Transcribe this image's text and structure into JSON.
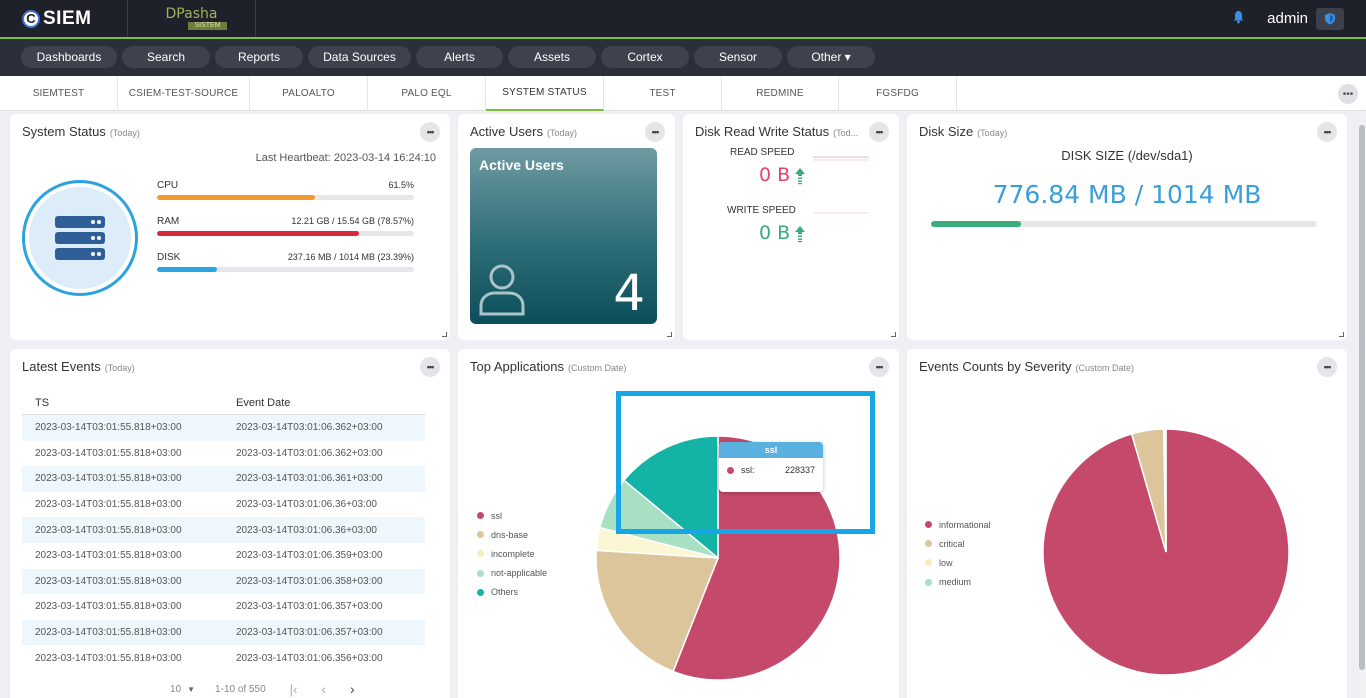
{
  "topbar": {
    "brand_letter": "C",
    "brand": "SIEM",
    "partner_name": "DPasha",
    "partner_sub": "SISTEM",
    "user": "admin"
  },
  "nav": [
    {
      "label": "Dashboards"
    },
    {
      "label": "Search"
    },
    {
      "label": "Reports"
    },
    {
      "label": "Data Sources"
    },
    {
      "label": "Alerts"
    },
    {
      "label": "Assets"
    },
    {
      "label": "Cortex"
    },
    {
      "label": "Sensor"
    },
    {
      "label": "Other ▾"
    }
  ],
  "tabs": [
    {
      "label": "SIEMTEST"
    },
    {
      "label": "CSIEM-TEST-SOURCE"
    },
    {
      "label": "PALOALTO"
    },
    {
      "label": "PALO EQL"
    },
    {
      "label": "SYSTEM STATUS",
      "active": true
    },
    {
      "label": "TEST"
    },
    {
      "label": "REDMINE"
    },
    {
      "label": "FGSFDG"
    }
  ],
  "system_status": {
    "title": "System Status",
    "sub": "(Today)",
    "heartbeat": "Last Heartbeat: 2023-03-14 16:24:10",
    "metrics": [
      {
        "label": "CPU",
        "value": "61.5%",
        "percent": 61.5,
        "color": "#f39a2e"
      },
      {
        "label": "RAM",
        "value": "12.21 GB / 15.54 GB (78.57%)",
        "percent": 78.57,
        "color": "#d8283b"
      },
      {
        "label": "DISK",
        "value": "237.16 MB / 1014 MB (23.39%)",
        "percent": 23.39,
        "color": "#2aa4e0"
      }
    ]
  },
  "active_users": {
    "title": "Active Users",
    "sub": "(Today)",
    "card_title": "Active Users",
    "count": "4"
  },
  "disk_rw": {
    "title": "Disk Read Write Status",
    "sub": "(Tod...",
    "read_label": "READ SPEED",
    "read_value": "0 B",
    "write_label": "WRITE SPEED",
    "write_value": "0 B"
  },
  "disk_size": {
    "title": "Disk Size",
    "sub": "(Today)",
    "label": "DISK SIZE (/dev/sda1)",
    "value": "776.84 MB / 1014 MB",
    "fill_percent": 23.39
  },
  "latest_events": {
    "title": "Latest Events",
    "sub": "(Today)",
    "columns": [
      "TS",
      "Event Date"
    ],
    "rows": [
      [
        "2023-03-14T03:01:55.818+03:00",
        "2023-03-14T03:01:06.362+03:00"
      ],
      [
        "2023-03-14T03:01:55.818+03:00",
        "2023-03-14T03:01:06.362+03:00"
      ],
      [
        "2023-03-14T03:01:55.818+03:00",
        "2023-03-14T03:01:06.361+03:00"
      ],
      [
        "2023-03-14T03:01:55.818+03:00",
        "2023-03-14T03:01:06.36+03:00"
      ],
      [
        "2023-03-14T03:01:55.818+03:00",
        "2023-03-14T03:01:06.36+03:00"
      ],
      [
        "2023-03-14T03:01:55.818+03:00",
        "2023-03-14T03:01:06.359+03:00"
      ],
      [
        "2023-03-14T03:01:55.818+03:00",
        "2023-03-14T03:01:06.358+03:00"
      ],
      [
        "2023-03-14T03:01:55.818+03:00",
        "2023-03-14T03:01:06.357+03:00"
      ],
      [
        "2023-03-14T03:01:55.818+03:00",
        "2023-03-14T03:01:06.357+03:00"
      ],
      [
        "2023-03-14T03:01:55.818+03:00",
        "2023-03-14T03:01:06.356+03:00"
      ]
    ],
    "page_size": "10",
    "range": "1-10 of 550"
  },
  "top_apps": {
    "title": "Top Applications",
    "sub": "(Custom Date)",
    "tooltip_title": "ssl",
    "tooltip_label": "ssl:",
    "tooltip_value": "228337"
  },
  "severity": {
    "title": "Events Counts by Severity",
    "sub": "(Custom Date)"
  },
  "chart_data": [
    {
      "type": "pie",
      "title": "Top Applications",
      "categories": [
        "ssl",
        "dns-base",
        "incomplete",
        "not-applicable",
        "Others"
      ],
      "values": [
        56,
        20,
        3,
        7,
        14
      ],
      "colors": [
        "#c5496b",
        "#dcc59a",
        "#fbf6d4",
        "#a8e0c3",
        "#13b3a6"
      ]
    },
    {
      "type": "pie",
      "title": "Events Counts by Severity",
      "categories": [
        "informational",
        "critical",
        "low",
        "medium"
      ],
      "values": [
        95.5,
        4.2,
        0.2,
        0.1
      ],
      "colors": [
        "#c5496b",
        "#dcc59a",
        "#fbf6d4",
        "#a8e0c3"
      ]
    }
  ]
}
